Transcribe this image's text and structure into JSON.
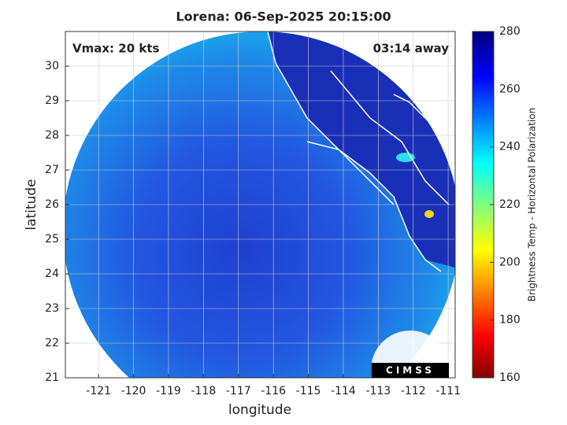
{
  "chart_data": {
    "type": "map",
    "title": "Lorena: 06-Sep-2025 20:15:00",
    "annotations": [
      "Vmax: 20 kts",
      "03:14 away"
    ],
    "xlabel": "longitude",
    "ylabel": "latitude",
    "xlim": [
      -121.95,
      -110.8
    ],
    "ylim": [
      21,
      31
    ],
    "xticks": [
      -121,
      -120,
      -119,
      -118,
      -117,
      -116,
      -115,
      -114,
      -113,
      -112,
      -111
    ],
    "yticks": [
      21,
      22,
      23,
      24,
      25,
      26,
      27,
      28,
      29,
      30
    ],
    "grid": true,
    "colorbar": {
      "label": "Brightness Temp - Horizontal Polarization",
      "lim": [
        160,
        280
      ],
      "ticks": [
        160,
        180,
        200,
        220,
        240,
        260,
        280
      ]
    },
    "logo": "CIMSS"
  }
}
